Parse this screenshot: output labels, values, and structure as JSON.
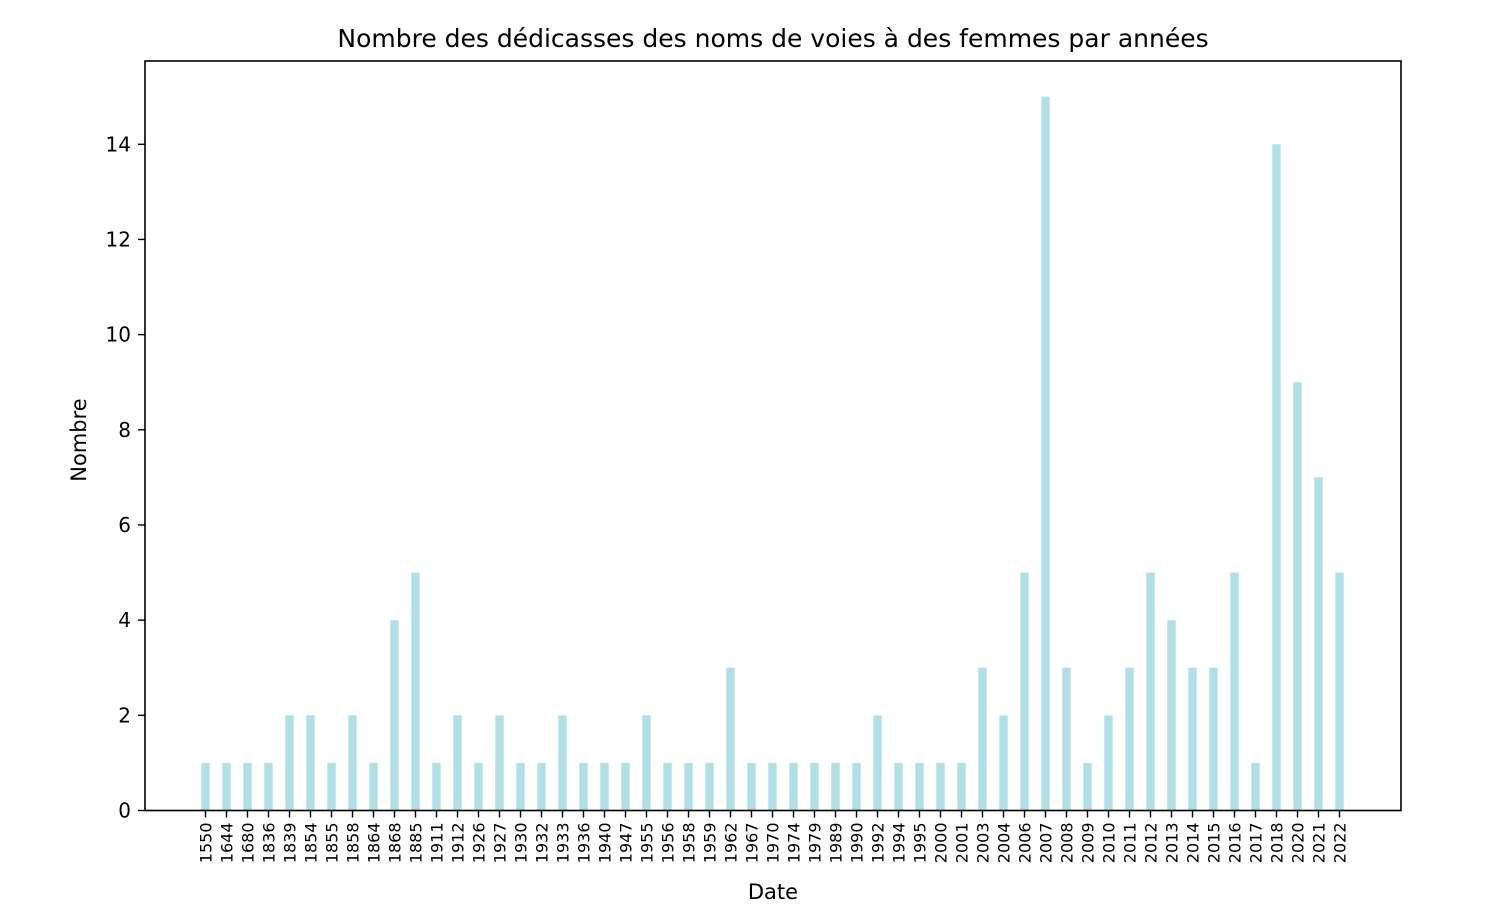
{
  "chart_data": {
    "type": "bar",
    "title": "Nombre des dédicasses des noms de voies à des femmes par années",
    "xlabel": "Date",
    "ylabel": "Nombre",
    "ylim": [
      0,
      15.75
    ],
    "yticks": [
      "0",
      "2",
      "4",
      "6",
      "8",
      "10",
      "12",
      "14"
    ],
    "grid": false,
    "legend": "none",
    "bar_color": "#b0e0e6",
    "categories": [
      "1550",
      "1644",
      "1680",
      "1836",
      "1839",
      "1854",
      "1855",
      "1858",
      "1864",
      "1868",
      "1885",
      "1911",
      "1912",
      "1926",
      "1927",
      "1930",
      "1932",
      "1933",
      "1936",
      "1940",
      "1947",
      "1955",
      "1956",
      "1958",
      "1959",
      "1962",
      "1967",
      "1970",
      "1974",
      "1979",
      "1989",
      "1990",
      "1992",
      "1994",
      "1995",
      "2000",
      "2001",
      "2003",
      "2004",
      "2006",
      "2007",
      "2008",
      "2009",
      "2010",
      "2011",
      "2012",
      "2013",
      "2014",
      "2015",
      "2016",
      "2017",
      "2018",
      "2020",
      "2021",
      "2022"
    ],
    "values": [
      1,
      1,
      1,
      1,
      2,
      2,
      1,
      2,
      1,
      4,
      5,
      1,
      2,
      1,
      2,
      1,
      1,
      2,
      1,
      1,
      1,
      2,
      1,
      1,
      1,
      3,
      1,
      1,
      1,
      1,
      1,
      1,
      2,
      1,
      1,
      1,
      1,
      3,
      2,
      5,
      15,
      3,
      1,
      2,
      3,
      5,
      4,
      3,
      3,
      5,
      1,
      14,
      9,
      7,
      5
    ]
  }
}
